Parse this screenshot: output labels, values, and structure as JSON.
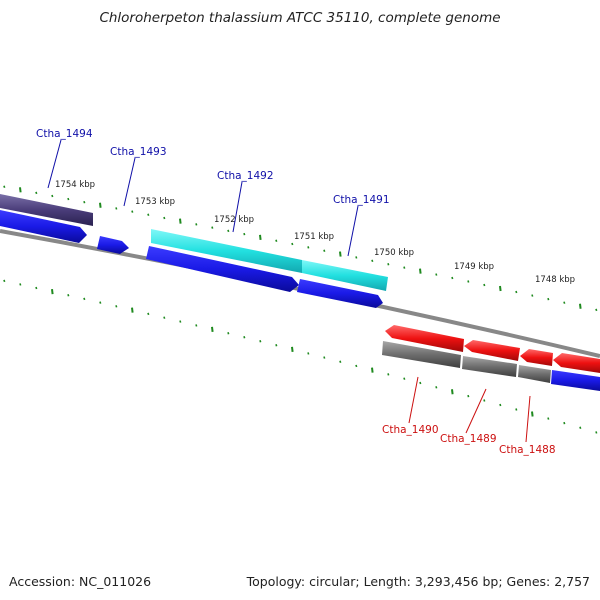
{
  "title": "Chloroherpeton thalassium ATCC 35110, complete genome",
  "footer": {
    "accession": "Accession: NC_011026",
    "summary": "Topology: circular; Length: 3,293,456 bp; Genes: 2,757"
  },
  "kbp_labels": [
    "1754 kbp",
    "1753 kbp",
    "1752 kbp",
    "1751 kbp",
    "1750 kbp",
    "1749 kbp",
    "1748 kbp"
  ],
  "genes": [
    {
      "id": "Ctha_1494",
      "color": "#1010a8"
    },
    {
      "id": "Ctha_1493",
      "color": "#1010a8"
    },
    {
      "id": "Ctha_1492",
      "color": "#1010a8"
    },
    {
      "id": "Ctha_1491",
      "color": "#1010a8"
    },
    {
      "id": "Ctha_1490",
      "color": "#cc1010"
    },
    {
      "id": "Ctha_1489",
      "color": "#cc1010"
    },
    {
      "id": "Ctha_1488",
      "color": "#cc1010"
    }
  ],
  "colors": {
    "forward_cds": "#1a1ae6",
    "reverse_cds": "#ee1111",
    "forward_gene": "#4a3d7a",
    "highlight_gene": "#22e0e0",
    "reverse_gene": "#6e6e6e",
    "backbone": "#888888",
    "ticks": "#1f8a1f"
  }
}
